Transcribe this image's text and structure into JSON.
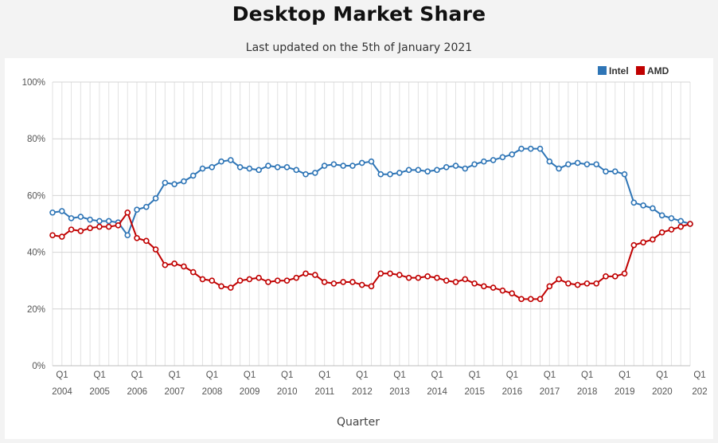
{
  "title": "Desktop Market Share",
  "subtitle": "Last updated on the 5th of January 2021",
  "chart_data": {
    "type": "line",
    "title": "Desktop Market Share",
    "subtitle": "Last updated on the 5th of January 2021",
    "xlabel": "Quarter",
    "ylabel": "",
    "ylim": [
      0,
      100
    ],
    "y_ticks": [
      "0%",
      "20%",
      "40%",
      "60%",
      "80%",
      "100%"
    ],
    "x_ticks": [
      {
        "q": "Q1",
        "year": "2004"
      },
      {
        "q": "Q1",
        "year": "2005"
      },
      {
        "q": "Q1",
        "year": "2006"
      },
      {
        "q": "Q1",
        "year": "2007"
      },
      {
        "q": "Q1",
        "year": "2008"
      },
      {
        "q": "Q1",
        "year": "2009"
      },
      {
        "q": "Q1",
        "year": "2010"
      },
      {
        "q": "Q1",
        "year": "2011"
      },
      {
        "q": "Q1",
        "year": "2012"
      },
      {
        "q": "Q1",
        "year": "2013"
      },
      {
        "q": "Q1",
        "year": "2014"
      },
      {
        "q": "Q1",
        "year": "2015"
      },
      {
        "q": "Q1",
        "year": "2016"
      },
      {
        "q": "Q1",
        "year": "2017"
      },
      {
        "q": "Q1",
        "year": "2018"
      },
      {
        "q": "Q1",
        "year": "2019"
      },
      {
        "q": "Q1",
        "year": "2020"
      },
      {
        "q": "Q1",
        "year": "202"
      }
    ],
    "grid": true,
    "legend_position": "top-right",
    "colors": {
      "Intel": "#2e75b6",
      "AMD": "#c00000"
    },
    "series": [
      {
        "name": "Intel",
        "values": [
          54.0,
          54.5,
          52.0,
          52.5,
          51.5,
          51.0,
          51.0,
          50.5,
          46.0,
          55.0,
          56.0,
          59.0,
          64.5,
          64.0,
          65.0,
          67.0,
          69.5,
          70.0,
          72.0,
          72.5,
          70.0,
          69.5,
          69.0,
          70.5,
          70.0,
          70.0,
          69.0,
          67.5,
          68.0,
          70.5,
          71.0,
          70.5,
          70.5,
          71.5,
          72.0,
          67.5,
          67.5,
          68.0,
          69.0,
          69.0,
          68.5,
          69.0,
          70.0,
          70.5,
          69.5,
          71.0,
          72.0,
          72.5,
          73.5,
          74.5,
          76.5,
          76.5,
          76.5,
          72.0,
          69.5,
          71.0,
          71.5,
          71.0,
          71.0,
          68.5,
          68.5,
          67.5,
          57.5,
          56.5,
          55.5,
          53.0,
          52.0,
          51.0,
          50.0
        ]
      },
      {
        "name": "AMD",
        "values": [
          46.0,
          45.5,
          48.0,
          47.5,
          48.5,
          49.0,
          49.0,
          49.5,
          54.0,
          45.0,
          44.0,
          41.0,
          35.5,
          36.0,
          35.0,
          33.0,
          30.5,
          30.0,
          28.0,
          27.5,
          30.0,
          30.5,
          31.0,
          29.5,
          30.0,
          30.0,
          31.0,
          32.5,
          32.0,
          29.5,
          29.0,
          29.5,
          29.5,
          28.5,
          28.0,
          32.5,
          32.5,
          32.0,
          31.0,
          31.0,
          31.5,
          31.0,
          30.0,
          29.5,
          30.5,
          29.0,
          28.0,
          27.5,
          26.5,
          25.5,
          23.5,
          23.5,
          23.5,
          28.0,
          30.5,
          29.0,
          28.5,
          29.0,
          29.0,
          31.5,
          31.5,
          32.5,
          42.5,
          43.5,
          44.5,
          47.0,
          48.0,
          49.0,
          50.0
        ]
      }
    ]
  }
}
